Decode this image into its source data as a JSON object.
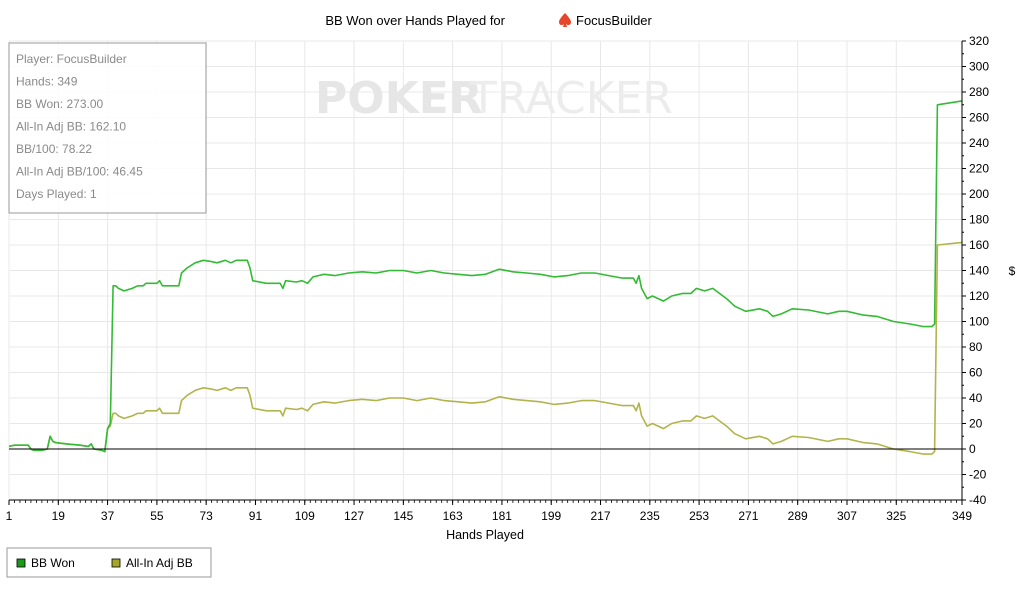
{
  "chart_data": {
    "type": "line",
    "title": "BB Won over Hands Played for",
    "title_player": "FocusBuilder",
    "xlabel": "Hands Played",
    "ylabel": "",
    "ylim": [
      -40,
      320
    ],
    "xlim": [
      1,
      349
    ],
    "y_ticks": [
      -40,
      -20,
      0,
      20,
      40,
      60,
      80,
      100,
      120,
      140,
      160,
      180,
      200,
      220,
      240,
      260,
      280,
      300,
      320
    ],
    "x_ticks": [
      1,
      19,
      37,
      55,
      73,
      91,
      109,
      127,
      145,
      163,
      181,
      199,
      217,
      235,
      253,
      271,
      289,
      307,
      325,
      349
    ],
    "y_axis_side": "right",
    "y_unit_label": "$",
    "grid": true,
    "legend_position": "bottom-left",
    "series": [
      {
        "name": "BB Won",
        "color": "#33bb33",
        "points": [
          [
            1,
            2
          ],
          [
            3,
            3
          ],
          [
            8,
            3
          ],
          [
            9,
            0
          ],
          [
            10,
            -1
          ],
          [
            13,
            -1
          ],
          [
            15,
            0
          ],
          [
            16,
            10
          ],
          [
            17,
            6
          ],
          [
            18,
            5
          ],
          [
            22,
            4
          ],
          [
            27,
            3
          ],
          [
            30,
            2
          ],
          [
            31,
            4
          ],
          [
            32,
            0
          ],
          [
            35,
            -1
          ],
          [
            36,
            -2
          ],
          [
            37,
            16
          ],
          [
            38,
            20
          ],
          [
            39,
            128
          ],
          [
            40,
            128
          ],
          [
            41,
            126
          ],
          [
            43,
            124
          ],
          [
            46,
            126
          ],
          [
            48,
            128
          ],
          [
            50,
            128
          ],
          [
            51,
            130
          ],
          [
            55,
            130
          ],
          [
            56,
            132
          ],
          [
            57,
            128
          ],
          [
            60,
            128
          ],
          [
            63,
            128
          ],
          [
            64,
            138
          ],
          [
            65,
            140
          ],
          [
            66,
            142
          ],
          [
            69,
            146
          ],
          [
            72,
            148
          ],
          [
            75,
            147
          ],
          [
            77,
            146
          ],
          [
            80,
            148
          ],
          [
            82,
            146
          ],
          [
            84,
            148
          ],
          [
            88,
            148
          ],
          [
            89,
            142
          ],
          [
            90,
            132
          ],
          [
            95,
            130
          ],
          [
            97,
            130
          ],
          [
            100,
            130
          ],
          [
            101,
            126
          ],
          [
            102,
            132
          ],
          [
            106,
            131
          ],
          [
            108,
            132
          ],
          [
            110,
            130
          ],
          [
            112,
            135
          ],
          [
            116,
            137
          ],
          [
            120,
            136
          ],
          [
            125,
            138
          ],
          [
            130,
            139
          ],
          [
            135,
            138
          ],
          [
            140,
            140
          ],
          [
            145,
            140
          ],
          [
            150,
            138
          ],
          [
            155,
            140
          ],
          [
            160,
            138
          ],
          [
            165,
            137
          ],
          [
            170,
            136
          ],
          [
            175,
            137
          ],
          [
            180,
            141
          ],
          [
            185,
            139
          ],
          [
            190,
            138
          ],
          [
            195,
            137
          ],
          [
            200,
            135
          ],
          [
            205,
            136
          ],
          [
            210,
            138
          ],
          [
            215,
            138
          ],
          [
            220,
            136
          ],
          [
            225,
            134
          ],
          [
            229,
            134
          ],
          [
            230,
            130
          ],
          [
            231,
            136
          ],
          [
            232,
            126
          ],
          [
            234,
            118
          ],
          [
            236,
            120
          ],
          [
            240,
            116
          ],
          [
            243,
            120
          ],
          [
            247,
            122
          ],
          [
            250,
            122
          ],
          [
            252,
            126
          ],
          [
            255,
            124
          ],
          [
            258,
            126
          ],
          [
            263,
            118
          ],
          [
            266,
            112
          ],
          [
            270,
            108
          ],
          [
            275,
            110
          ],
          [
            278,
            108
          ],
          [
            280,
            104
          ],
          [
            283,
            106
          ],
          [
            287,
            110
          ],
          [
            293,
            109
          ],
          [
            300,
            106
          ],
          [
            304,
            108
          ],
          [
            307,
            108
          ],
          [
            313,
            105
          ],
          [
            318,
            104
          ],
          [
            324,
            100
          ],
          [
            330,
            98
          ],
          [
            335,
            96
          ],
          [
            338,
            96
          ],
          [
            339,
            98
          ],
          [
            340,
            270
          ],
          [
            349,
            273
          ]
        ]
      },
      {
        "name": "All-In Adj BB",
        "color": "#b3b34d",
        "points": [
          [
            1,
            2
          ],
          [
            3,
            3
          ],
          [
            8,
            3
          ],
          [
            9,
            0
          ],
          [
            10,
            -1
          ],
          [
            13,
            -1
          ],
          [
            15,
            0
          ],
          [
            16,
            10
          ],
          [
            17,
            6
          ],
          [
            18,
            5
          ],
          [
            22,
            4
          ],
          [
            27,
            3
          ],
          [
            30,
            2
          ],
          [
            31,
            4
          ],
          [
            32,
            0
          ],
          [
            35,
            -1
          ],
          [
            36,
            -2
          ],
          [
            37,
            16
          ],
          [
            38,
            18
          ],
          [
            39,
            28
          ],
          [
            40,
            28
          ],
          [
            41,
            26
          ],
          [
            43,
            24
          ],
          [
            46,
            26
          ],
          [
            48,
            28
          ],
          [
            50,
            28
          ],
          [
            51,
            30
          ],
          [
            55,
            30
          ],
          [
            56,
            32
          ],
          [
            57,
            28
          ],
          [
            60,
            28
          ],
          [
            63,
            28
          ],
          [
            64,
            38
          ],
          [
            65,
            40
          ],
          [
            66,
            42
          ],
          [
            69,
            46
          ],
          [
            72,
            48
          ],
          [
            75,
            47
          ],
          [
            77,
            46
          ],
          [
            80,
            48
          ],
          [
            82,
            46
          ],
          [
            84,
            48
          ],
          [
            88,
            48
          ],
          [
            89,
            42
          ],
          [
            90,
            32
          ],
          [
            95,
            30
          ],
          [
            97,
            30
          ],
          [
            100,
            30
          ],
          [
            101,
            26
          ],
          [
            102,
            32
          ],
          [
            106,
            31
          ],
          [
            108,
            32
          ],
          [
            110,
            30
          ],
          [
            112,
            35
          ],
          [
            116,
            37
          ],
          [
            120,
            36
          ],
          [
            125,
            38
          ],
          [
            130,
            39
          ],
          [
            135,
            38
          ],
          [
            140,
            40
          ],
          [
            145,
            40
          ],
          [
            150,
            38
          ],
          [
            155,
            40
          ],
          [
            160,
            38
          ],
          [
            165,
            37
          ],
          [
            170,
            36
          ],
          [
            175,
            37
          ],
          [
            180,
            41
          ],
          [
            185,
            39
          ],
          [
            190,
            38
          ],
          [
            195,
            37
          ],
          [
            200,
            35
          ],
          [
            205,
            36
          ],
          [
            210,
            38
          ],
          [
            215,
            38
          ],
          [
            220,
            36
          ],
          [
            225,
            34
          ],
          [
            229,
            34
          ],
          [
            230,
            30
          ],
          [
            231,
            36
          ],
          [
            232,
            26
          ],
          [
            234,
            18
          ],
          [
            236,
            20
          ],
          [
            240,
            16
          ],
          [
            243,
            20
          ],
          [
            247,
            22
          ],
          [
            250,
            22
          ],
          [
            252,
            26
          ],
          [
            255,
            24
          ],
          [
            258,
            26
          ],
          [
            263,
            18
          ],
          [
            266,
            12
          ],
          [
            270,
            8
          ],
          [
            275,
            10
          ],
          [
            278,
            8
          ],
          [
            280,
            4
          ],
          [
            283,
            6
          ],
          [
            287,
            10
          ],
          [
            293,
            9
          ],
          [
            300,
            6
          ],
          [
            304,
            8
          ],
          [
            307,
            8
          ],
          [
            313,
            5
          ],
          [
            318,
            4
          ],
          [
            324,
            0
          ],
          [
            330,
            -2
          ],
          [
            335,
            -4
          ],
          [
            338,
            -4
          ],
          [
            339,
            -2
          ],
          [
            340,
            160
          ],
          [
            349,
            162
          ]
        ]
      }
    ]
  },
  "stats_box": {
    "lines": [
      "Player: FocusBuilder",
      "Hands: 349",
      "BB Won: 273.00",
      "All-In Adj BB: 162.10",
      "BB/100: 78.22",
      "All-In Adj BB/100: 46.45",
      "Days Played: 1"
    ]
  },
  "watermark": {
    "strong": "POKER",
    "light": "TRACKER"
  },
  "legend": {
    "items": [
      "BB Won",
      "All-In Adj BB"
    ]
  },
  "colors": {
    "grid": "#e8e8e8",
    "zero_line": "#000000",
    "axis": "#000000",
    "icon": "#e8462a"
  },
  "icons": {
    "title_icon": "spade-icon"
  }
}
